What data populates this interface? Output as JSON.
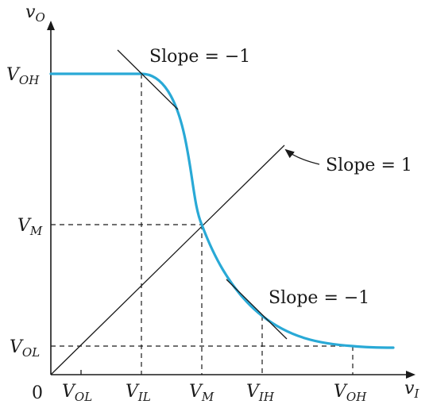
{
  "axes": {
    "y_label_main": "v",
    "y_label_sub": "O",
    "x_label_main": "v",
    "x_label_sub": "I",
    "origin": "0"
  },
  "y_ticks": [
    {
      "main": "V",
      "sub": "OH"
    },
    {
      "main": "V",
      "sub": "M"
    },
    {
      "main": "V",
      "sub": "OL"
    }
  ],
  "x_ticks": [
    {
      "main": "V",
      "sub": "OL"
    },
    {
      "main": "V",
      "sub": "IL"
    },
    {
      "main": "V",
      "sub": "M"
    },
    {
      "main": "V",
      "sub": "IH"
    },
    {
      "main": "V",
      "sub": "OH"
    }
  ],
  "annotations": {
    "slope_top": "Slope = −1",
    "slope_unity": "Slope = 1",
    "slope_bottom": "Slope = −1"
  },
  "colors": {
    "curve": "#29a9d6",
    "lines": "#1a1a1a"
  }
}
